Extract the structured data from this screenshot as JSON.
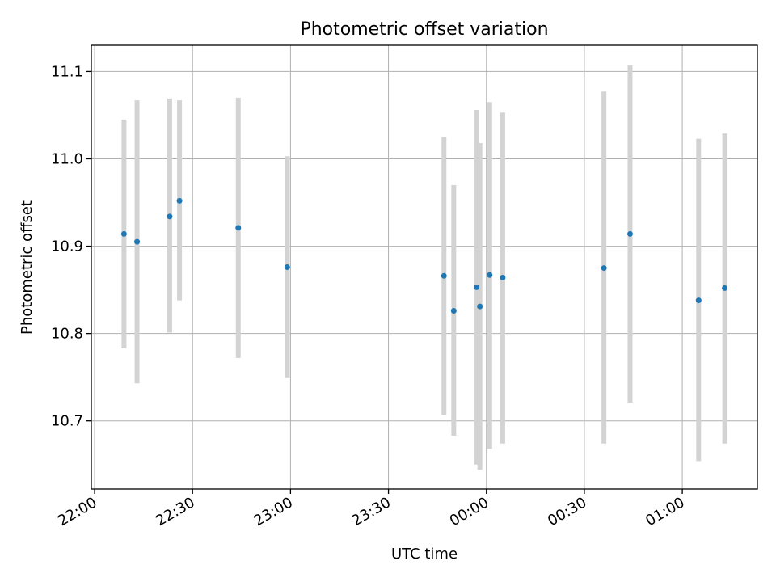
{
  "chart_data": {
    "type": "scatter",
    "title": "Photometric offset variation",
    "xlabel": "UTC time",
    "ylabel": "Photometric offset",
    "xlim": [
      "21:59",
      "01:23"
    ],
    "ylim": [
      10.622,
      11.13
    ],
    "x_ticks": [
      "22:00",
      "22:30",
      "23:00",
      "23:30",
      "00:00",
      "00:30",
      "01:00"
    ],
    "y_ticks": [
      "10.7",
      "10.8",
      "10.9",
      "11.0",
      "11.1"
    ],
    "grid": true,
    "colors": {
      "point": "#1f77b4",
      "errorbar": "#d3d3d3",
      "grid": "#b0b0b0"
    },
    "points": [
      {
        "x": "22:09",
        "y": 10.914,
        "ylow": 10.783,
        "yhigh": 11.045
      },
      {
        "x": "22:13",
        "y": 10.905,
        "ylow": 10.743,
        "yhigh": 11.067
      },
      {
        "x": "22:23",
        "y": 10.934,
        "ylow": 10.801,
        "yhigh": 11.069
      },
      {
        "x": "22:26",
        "y": 10.952,
        "ylow": 10.838,
        "yhigh": 11.067
      },
      {
        "x": "22:44",
        "y": 10.921,
        "ylow": 10.772,
        "yhigh": 11.07
      },
      {
        "x": "22:59",
        "y": 10.876,
        "ylow": 10.749,
        "yhigh": 11.003
      },
      {
        "x": "23:47",
        "y": 10.866,
        "ylow": 10.707,
        "yhigh": 11.025
      },
      {
        "x": "23:50",
        "y": 10.826,
        "ylow": 10.683,
        "yhigh": 10.97
      },
      {
        "x": "23:57",
        "y": 10.853,
        "ylow": 10.65,
        "yhigh": 11.056
      },
      {
        "x": "23:58",
        "y": 10.831,
        "ylow": 10.644,
        "yhigh": 11.018
      },
      {
        "x": "00:01",
        "y": 10.867,
        "ylow": 10.668,
        "yhigh": 11.065
      },
      {
        "x": "00:05",
        "y": 10.864,
        "ylow": 10.674,
        "yhigh": 11.053
      },
      {
        "x": "00:36",
        "y": 10.875,
        "ylow": 10.674,
        "yhigh": 11.077
      },
      {
        "x": "00:44",
        "y": 10.914,
        "ylow": 10.721,
        "yhigh": 11.107
      },
      {
        "x": "01:05",
        "y": 10.838,
        "ylow": 10.654,
        "yhigh": 11.023
      },
      {
        "x": "01:13",
        "y": 10.852,
        "ylow": 10.674,
        "yhigh": 11.029
      }
    ]
  }
}
